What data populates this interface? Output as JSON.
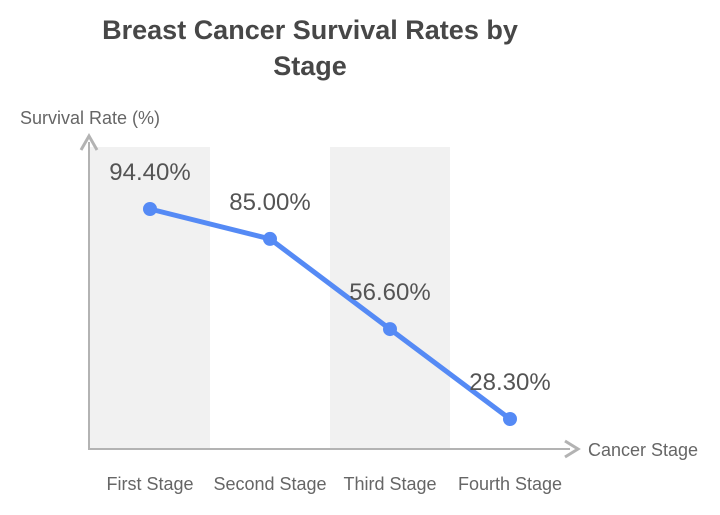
{
  "page": {
    "background": "#ffffff"
  },
  "colors": {
    "title": "#474747",
    "axis_text": "#666666",
    "data_label": "#545454",
    "line": "#558af5",
    "point": "#558af5",
    "band": "#f1f1f1",
    "axis": "#b3b3b3"
  },
  "chart_data": {
    "type": "line",
    "title": "Breast Cancer Survival Rates by Stage",
    "title_lines": [
      "Breast Cancer Survival Rates by",
      "Stage"
    ],
    "xlabel": "Cancer Stage",
    "ylabel": "Survival Rate (%)",
    "categories": [
      "First Stage",
      "Second Stage",
      "Third Stage",
      "Fourth Stage"
    ],
    "series": [
      {
        "name": "Survival Rate (%)",
        "values": [
          94.4,
          85.0,
          56.6,
          28.3
        ]
      }
    ],
    "data_labels": [
      "94.40%",
      "85.00%",
      "56.60%",
      "28.30%"
    ],
    "ylim": [
      19,
      115
    ],
    "grid": false,
    "legend": "none",
    "background_bands": {
      "behind_categories": [
        0,
        2
      ],
      "color": "#f1f1f1"
    }
  }
}
